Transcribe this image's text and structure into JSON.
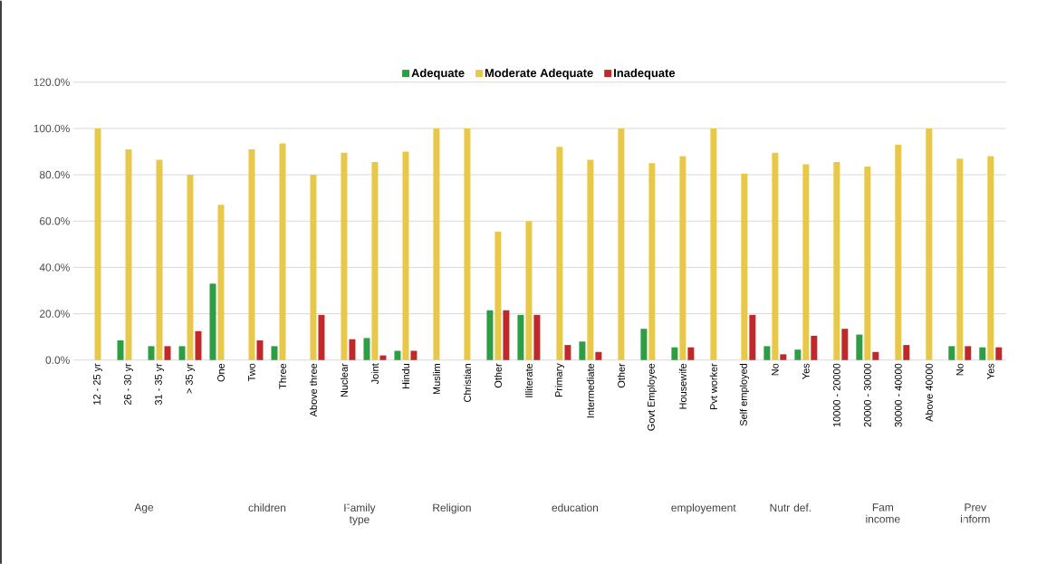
{
  "chart_data": {
    "type": "bar",
    "categories": [
      "12 - 25 yr",
      "26 - 30 yr",
      "31 - 35 yr",
      "> 35 yr",
      "One",
      "Two",
      "Three",
      "Above three",
      "Nuclear",
      "Joint",
      "Hindu",
      "Muslim",
      "Christian",
      "Other",
      "Illiterate",
      "Primary",
      "Intermediate",
      "Other",
      "Govt Employee",
      "Housewife",
      "Pvt worker",
      "Self employed",
      "No",
      "Yes",
      "10000 - 20000",
      "20000 - 30000",
      "30000 - 40000",
      "Above 40000",
      "No",
      "Yes"
    ],
    "series": [
      {
        "name": "Adequate",
        "color": "#2e9e44",
        "values": [
          0,
          8.5,
          6,
          6,
          33,
          0,
          6,
          0,
          0,
          9.5,
          4,
          0,
          0,
          21.5,
          19.5,
          0,
          8,
          0,
          13.5,
          5.5,
          0,
          0,
          6,
          4.5,
          0,
          11,
          0,
          0,
          6,
          5.5
        ]
      },
      {
        "name": "Moderate Adequate",
        "color": "#e8c84a",
        "values": [
          100,
          91,
          86.5,
          80,
          67,
          91,
          93.5,
          80,
          89.5,
          85.5,
          90,
          100,
          100,
          55.5,
          60,
          92,
          86.5,
          100,
          85,
          88,
          100,
          80.5,
          89.5,
          84.5,
          85.5,
          83.5,
          93,
          100,
          87,
          88
        ]
      },
      {
        "name": "Inadequate",
        "color": "#c0282a",
        "values": [
          0,
          0,
          6,
          12.5,
          0,
          8.5,
          0,
          19.5,
          9,
          2,
          4,
          0,
          0,
          21.5,
          19.5,
          6.5,
          3.5,
          0,
          0,
          5.5,
          0,
          19.5,
          2.5,
          10.5,
          13.5,
          3.5,
          6.5,
          0,
          6,
          5.5
        ]
      }
    ],
    "ylim": [
      0,
      120
    ],
    "yticks": [
      {
        "value": 0,
        "label": "0.0%"
      },
      {
        "value": 20,
        "label": "20.0%"
      },
      {
        "value": 40,
        "label": "40.0%"
      },
      {
        "value": 60,
        "label": "60.0%"
      },
      {
        "value": 80,
        "label": "80.0%"
      },
      {
        "value": 100,
        "label": "100.0%"
      },
      {
        "value": 120,
        "label": "120.0%"
      }
    ],
    "grid": "y",
    "legend": "top",
    "annotations": [
      "Age",
      "children",
      "Family type",
      "Religion",
      "education",
      "employement",
      "Nutr def.",
      "Fam income",
      "Prev inform"
    ]
  }
}
